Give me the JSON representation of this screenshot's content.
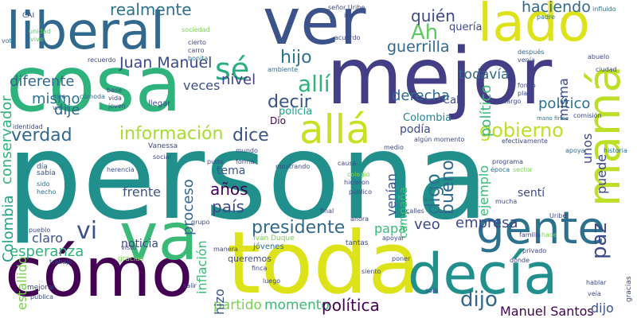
{
  "words": [
    {
      "text": "persona",
      "color": "#21908d"
    },
    {
      "text": "cosa",
      "color": "#2eb37c"
    },
    {
      "text": "mejor",
      "color": "#433e85"
    },
    {
      "text": "ver",
      "color": "#3b528b"
    },
    {
      "text": "toda",
      "color": "#dde318"
    },
    {
      "text": "cómo",
      "color": "#440154"
    },
    {
      "text": "decía",
      "color": "#21908d"
    },
    {
      "text": "liberal",
      "color": "#31688e"
    },
    {
      "text": "lado",
      "color": "#dde318"
    },
    {
      "text": "mamá",
      "color": "#bddf26"
    },
    {
      "text": "va",
      "color": "#3aba76"
    },
    {
      "text": "gente",
      "color": "#2c718e"
    },
    {
      "text": "allá",
      "color": "#c8e020"
    },
    {
      "text": "sé",
      "color": "#28ae80"
    },
    {
      "text": "Ah",
      "color": "#5ec962"
    },
    {
      "text": "realmente",
      "color": "#2c718e"
    },
    {
      "text": "haciendo",
      "color": "#31688e"
    },
    {
      "text": "quién",
      "color": "#3e4989"
    },
    {
      "text": "quería",
      "color": "#3e4989"
    },
    {
      "text": "guerrilla",
      "color": "#31688e"
    },
    {
      "text": "diferente",
      "color": "#31688e"
    },
    {
      "text": "Juan Manuel",
      "color": "#3e4989"
    },
    {
      "text": "nivel",
      "color": "#433e85"
    },
    {
      "text": "hijo",
      "color": "#2c718e"
    },
    {
      "text": "todavía",
      "color": "#31688e"
    },
    {
      "text": "allí",
      "color": "#2eb37c"
    },
    {
      "text": "mismo",
      "color": "#2c718e"
    },
    {
      "text": "dije",
      "color": "#31688e"
    },
    {
      "text": "veces",
      "color": "#3b528b"
    },
    {
      "text": "Cali",
      "color": "#3e4989"
    },
    {
      "text": "decir",
      "color": "#3b528b"
    },
    {
      "text": "derecha",
      "color": "#31688e"
    },
    {
      "text": "político",
      "color": "#3aba76"
    },
    {
      "text": "llama",
      "color": "#2c718e"
    },
    {
      "text": "información",
      "color": "#a8db34"
    },
    {
      "text": "dice",
      "color": "#3b528b"
    },
    {
      "text": "policía",
      "color": "#20a386"
    },
    {
      "text": "podía",
      "color": "#3e4989"
    },
    {
      "text": "gobierno",
      "color": "#bddf26"
    },
    {
      "text": "verdad",
      "color": "#31688e"
    },
    {
      "text": "conservador",
      "color": "#2eb37c"
    },
    {
      "text": "Colombia",
      "color": "#20a386"
    },
    {
      "text": "Álvaro Uribe",
      "color": "#25848e"
    },
    {
      "text": "bueno",
      "color": "#31688e"
    },
    {
      "text": "tema",
      "color": "#3b528b"
    },
    {
      "text": "años",
      "color": "#440154"
    },
    {
      "text": "país",
      "color": "#3e4989"
    },
    {
      "text": "proceso",
      "color": "#31688e"
    },
    {
      "text": "vi",
      "color": "#3b528b"
    },
    {
      "text": "frente",
      "color": "#3b528b"
    },
    {
      "text": "digo",
      "color": "#2c718e"
    },
    {
      "text": "venían",
      "color": "#3b528b"
    },
    {
      "text": "ejemplo",
      "color": "#3aba76"
    },
    {
      "text": "paz",
      "color": "#3e4989"
    },
    {
      "text": "presidente",
      "color": "#31688e"
    },
    {
      "text": "papá",
      "color": "#3aba76"
    },
    {
      "text": "veo",
      "color": "#3e4989"
    },
    {
      "text": "empresa",
      "color": "#3e4989"
    },
    {
      "text": "estallido",
      "color": "#7ad151"
    },
    {
      "text": "claro",
      "color": "#3b528b"
    },
    {
      "text": "esperanza",
      "color": "#2eb37c"
    },
    {
      "text": "noticia",
      "color": "#3e4989"
    },
    {
      "text": "inflación",
      "color": "#3aba76"
    },
    {
      "text": "partido",
      "color": "#7ad151"
    },
    {
      "text": "momento",
      "color": "#3aba76"
    },
    {
      "text": "política",
      "color": "#440154"
    },
    {
      "text": "dijo",
      "color": "#31688e"
    },
    {
      "text": "Manuel Santos",
      "color": "#440154"
    },
    {
      "text": "hizo",
      "color": "#3b528b"
    },
    {
      "text": "campaña",
      "color": "#3aba76"
    },
    {
      "text": "sentí",
      "color": "#3e4989"
    },
    {
      "text": "puede",
      "color": "#3e4989"
    },
    {
      "text": "unos",
      "color": "#3e4989"
    },
    {
      "text": "misma",
      "color": "#3e4989"
    },
    {
      "text": "Dio",
      "color": "#440154"
    },
    {
      "text": "Iván Duque",
      "color": "#7ad151"
    },
    {
      "text": "jóvenes",
      "color": "#31688e"
    },
    {
      "text": "queremos",
      "color": "#3e4989"
    },
    {
      "text": "Vanessa",
      "color": "#3e4989"
    },
    {
      "text": "CAI",
      "color": "#3e4989"
    },
    {
      "text": "voto",
      "color": "#2c718e"
    },
    {
      "text": "unidad",
      "color": "#5ec962"
    },
    {
      "text": "vive",
      "color": "#5ec962"
    },
    {
      "text": "entrevista",
      "color": "#5ec962"
    },
    {
      "text": "recuerdo",
      "color": "#3e4989"
    },
    {
      "text": "sociedad",
      "color": "#7ad151"
    },
    {
      "text": "cierto",
      "color": "#3e4989"
    },
    {
      "text": "carro",
      "color": "#3e4989"
    },
    {
      "text": "bonita",
      "color": "#2c718e"
    },
    {
      "text": "iba",
      "color": "#3e4989"
    },
    {
      "text": "señor Uribe",
      "color": "#3e4989"
    },
    {
      "text": "acuerdo",
      "color": "#3e4989"
    },
    {
      "text": "padre",
      "color": "#2c718e"
    },
    {
      "text": "influido",
      "color": "#2c718e"
    },
    {
      "text": "mayores",
      "color": "#2c718e"
    },
    {
      "text": "fácil",
      "color": "#3e4989"
    },
    {
      "text": "después",
      "color": "#31688e"
    },
    {
      "text": "venía",
      "color": "#3e4989"
    },
    {
      "text": "abuelo",
      "color": "#3e4989"
    },
    {
      "text": "ciudad",
      "color": "#3e4989"
    },
    {
      "text": "fondo",
      "color": "#3e4989"
    },
    {
      "text": "plata",
      "color": "#3e4989"
    },
    {
      "text": "cargo",
      "color": "#3e4989"
    },
    {
      "text": "comisión",
      "color": "#3e4989"
    },
    {
      "text": "mano firme",
      "color": "#2c718e"
    },
    {
      "text": "base",
      "color": "#3e4989"
    },
    {
      "text": "vida",
      "color": "#3e4989"
    },
    {
      "text": "joven",
      "color": "#3e4989"
    },
    {
      "text": "hice",
      "color": "#2c718e"
    },
    {
      "text": "cómoda",
      "color": "#2c718e"
    },
    {
      "text": "viene",
      "color": "#2c718e"
    },
    {
      "text": "llegar",
      "color": "#3e4989"
    },
    {
      "text": "identidad",
      "color": "#3e4989"
    },
    {
      "text": "ambiente",
      "color": "#2c718e"
    },
    {
      "text": "punitivos",
      "color": "#2c718e"
    },
    {
      "text": "hija",
      "color": "#3e4989"
    },
    {
      "text": "empresarial",
      "color": "#2c718e"
    },
    {
      "text": "algún momento",
      "color": "#3e4989"
    },
    {
      "text": "efectivamente",
      "color": "#3e4989"
    },
    {
      "text": "apoya",
      "color": "#2c718e"
    },
    {
      "text": "historia",
      "color": "#2c718e"
    },
    {
      "text": "mundo",
      "color": "#3e4989"
    },
    {
      "text": "social",
      "color": "#3e4989"
    },
    {
      "text": "día",
      "color": "#3b528b"
    },
    {
      "text": "sabía",
      "color": "#3b528b"
    },
    {
      "text": "herencia",
      "color": "#3b528b"
    },
    {
      "text": "pudo",
      "color": "#3e4989"
    },
    {
      "text": "forma",
      "color": "#3e4989"
    },
    {
      "text": "mostrando",
      "color": "#3e4989"
    },
    {
      "text": "causa",
      "color": "#3e4989"
    },
    {
      "text": "medio",
      "color": "#3e4989"
    },
    {
      "text": "programa",
      "color": "#3e4989"
    },
    {
      "text": "época",
      "color": "#2c718e"
    },
    {
      "text": "sector",
      "color": "#7ad151"
    },
    {
      "text": "colegio",
      "color": "#7ad151"
    },
    {
      "text": "hicieron",
      "color": "#3e4989"
    },
    {
      "text": "público",
      "color": "#3e4989"
    },
    {
      "text": "hablábamos",
      "color": "#3e4989"
    },
    {
      "text": "sido",
      "color": "#2c718e"
    },
    {
      "text": "hecho",
      "color": "#2c718e"
    },
    {
      "text": "grupo",
      "color": "#3e4989"
    },
    {
      "text": "final",
      "color": "#3e4989"
    },
    {
      "text": "calles",
      "color": "#3e4989"
    },
    {
      "text": "mucha",
      "color": "#3e4989"
    },
    {
      "text": "Uribe",
      "color": "#3e4989"
    },
    {
      "text": "ahora",
      "color": "#3e4989"
    },
    {
      "text": "pueblo",
      "color": "#3e4989"
    },
    {
      "text": "familia",
      "color": "#3e4989"
    },
    {
      "text": "hace",
      "color": "#7ad151"
    },
    {
      "text": "desafortunadamente",
      "color": "#3e4989"
    },
    {
      "text": "trabajo",
      "color": "#3e4989"
    },
    {
      "text": "gracias",
      "color": "#7ad151"
    },
    {
      "text": "visto",
      "color": "#3e4989"
    },
    {
      "text": "manera",
      "color": "#3e4989"
    },
    {
      "text": "tantas",
      "color": "#3e4989"
    },
    {
      "text": "apoyar",
      "color": "#3e4989"
    },
    {
      "text": "privado",
      "color": "#3e4989"
    },
    {
      "text": "dónde",
      "color": "#3e4989"
    },
    {
      "text": "pensar",
      "color": "#3e4989"
    },
    {
      "text": "finca",
      "color": "#3e4989"
    },
    {
      "text": "siento",
      "color": "#3e4989"
    },
    {
      "text": "poner",
      "color": "#3e4989"
    },
    {
      "text": "luego",
      "color": "#3e4989"
    },
    {
      "text": "cuelgo",
      "color": "#3e4989"
    },
    {
      "text": "sola",
      "color": "#3e4989"
    },
    {
      "text": "mejorar",
      "color": "#3e4989"
    },
    {
      "text": "pública",
      "color": "#3e4989"
    },
    {
      "text": "salir",
      "color": "#3e4989"
    },
    {
      "text": "entender",
      "color": "#3e4989"
    },
    {
      "text": "hablar",
      "color": "#3e4989"
    },
    {
      "text": "veía",
      "color": "#3e4989"
    },
    {
      "text": "entonces",
      "color": "#3e4989"
    },
    {
      "text": "creía",
      "color": "#3e4989"
    },
    {
      "text": "gases lacrimógenos",
      "color": "#3e4989"
    },
    {
      "text": "mejorado",
      "color": "#2c718e"
    },
    {
      "text": "ay",
      "color": "#3e4989"
    }
  ]
}
